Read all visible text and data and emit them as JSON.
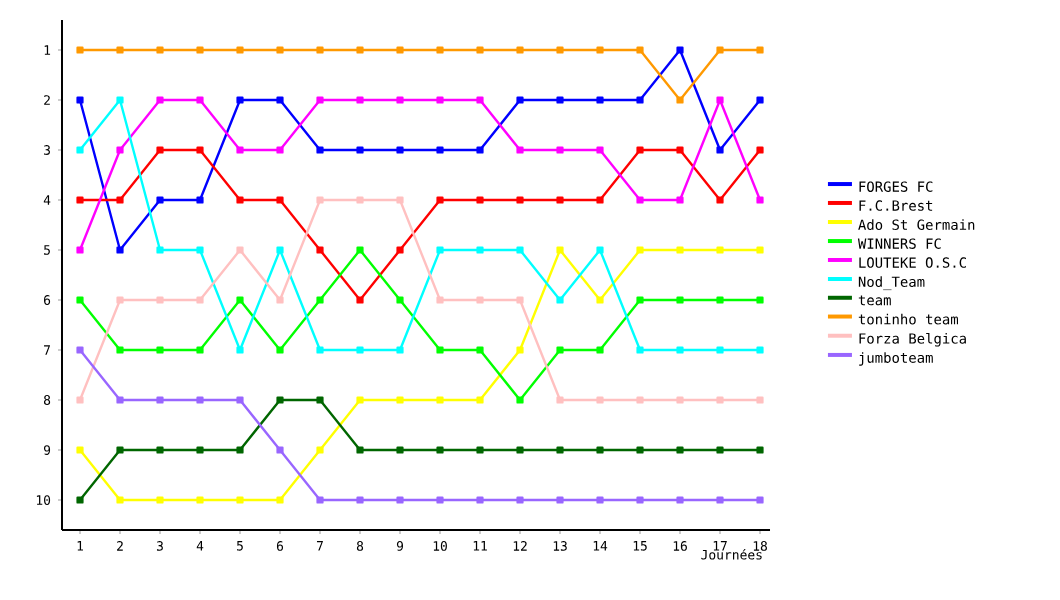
{
  "chart_data": {
    "type": "line",
    "xlabel": "Journées",
    "x": [
      1,
      2,
      3,
      4,
      5,
      6,
      7,
      8,
      9,
      10,
      11,
      12,
      13,
      14,
      15,
      16,
      17,
      18
    ],
    "xlim": [
      0.55,
      18.25
    ],
    "xticks": [
      1,
      2,
      3,
      4,
      5,
      6,
      7,
      8,
      9,
      10,
      11,
      12,
      13,
      14,
      15,
      16,
      17,
      18
    ],
    "ylim": [
      10.6,
      0.4
    ],
    "yticks": [
      1,
      2,
      3,
      4,
      5,
      6,
      7,
      8,
      9,
      10
    ],
    "marker": "square",
    "legend": "right",
    "grid": false,
    "series": [
      {
        "name": "FORGES FC",
        "color": "#0000ff",
        "values": [
          2,
          5,
          4,
          4,
          2,
          2,
          3,
          3,
          3,
          3,
          3,
          2,
          2,
          2,
          2,
          1,
          3,
          2
        ]
      },
      {
        "name": "F.C.Brest",
        "color": "#ff0000",
        "values": [
          4,
          4,
          3,
          3,
          4,
          4,
          5,
          6,
          5,
          4,
          4,
          4,
          4,
          4,
          3,
          3,
          4,
          3
        ]
      },
      {
        "name": "Ado St Germain",
        "color": "#ffff00",
        "values": [
          9,
          10,
          10,
          10,
          10,
          10,
          9,
          8,
          8,
          8,
          8,
          7,
          5,
          6,
          5,
          5,
          5,
          5
        ]
      },
      {
        "name": "WINNERS FC",
        "color": "#00ff00",
        "values": [
          6,
          7,
          7,
          7,
          6,
          7,
          6,
          5,
          6,
          7,
          7,
          8,
          7,
          7,
          6,
          6,
          6,
          6
        ]
      },
      {
        "name": "LOUTEKE O.S.C",
        "color": "#ff00ff",
        "values": [
          5,
          3,
          2,
          2,
          3,
          3,
          2,
          2,
          2,
          2,
          2,
          3,
          3,
          3,
          4,
          4,
          2,
          4
        ]
      },
      {
        "name": "Nod_Team",
        "color": "#00ffff",
        "values": [
          3,
          2,
          5,
          5,
          7,
          5,
          7,
          7,
          7,
          5,
          5,
          5,
          6,
          5,
          7,
          7,
          7,
          7
        ]
      },
      {
        "name": "team",
        "color": "#006600",
        "values": [
          10,
          9,
          9,
          9,
          9,
          8,
          8,
          9,
          9,
          9,
          9,
          9,
          9,
          9,
          9,
          9,
          9,
          9
        ]
      },
      {
        "name": "toninho team",
        "color": "#ff9900",
        "values": [
          1,
          1,
          1,
          1,
          1,
          1,
          1,
          1,
          1,
          1,
          1,
          1,
          1,
          1,
          1,
          2,
          1,
          1
        ]
      },
      {
        "name": "Forza Belgica",
        "color": "#ffc0c0",
        "values": [
          8,
          6,
          6,
          6,
          5,
          6,
          4,
          4,
          4,
          6,
          6,
          6,
          8,
          8,
          8,
          8,
          8,
          8
        ]
      },
      {
        "name": "jumboteam",
        "color": "#9966ff",
        "values": [
          7,
          8,
          8,
          8,
          8,
          9,
          10,
          10,
          10,
          10,
          10,
          10,
          10,
          10,
          10,
          10,
          10,
          10
        ]
      }
    ]
  }
}
